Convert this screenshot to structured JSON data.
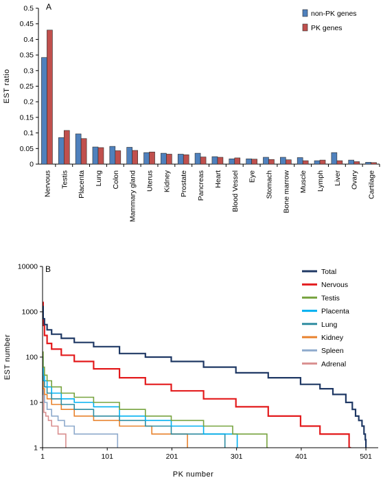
{
  "chart_data": [
    {
      "type": "bar",
      "panel_label": "A",
      "ylabel": "EST ratio",
      "xlabel": "",
      "ylim": [
        0,
        0.5
      ],
      "yticks": [
        0,
        0.05,
        0.1,
        0.15,
        0.2,
        0.25,
        0.3,
        0.35,
        0.4,
        0.45,
        0.5
      ],
      "ytick_labels": [
        "0",
        "0.05",
        "0.1",
        "0.15",
        "0.2",
        "0.25",
        "0.3",
        "0.35",
        "0.4",
        "0.45",
        "0.5"
      ],
      "legend_position": "top-right",
      "categories": [
        "Nervous",
        "Testis",
        "Placenta",
        "Lung",
        "Colon",
        "Mammary gland",
        "Uterus",
        "Kidney",
        "Prostate",
        "Pancreas",
        "Heart",
        "Blood Vessel",
        "Eye",
        "Stomach",
        "Bone marrow",
        "Muscle",
        "Lymph",
        "Liver",
        "Ovary",
        "Cartilage"
      ],
      "series": [
        {
          "name": "non-PK genes",
          "color": "#4f81bd",
          "values": [
            0.342,
            0.085,
            0.097,
            0.055,
            0.057,
            0.054,
            0.037,
            0.035,
            0.032,
            0.035,
            0.024,
            0.017,
            0.017,
            0.022,
            0.022,
            0.021,
            0.011,
            0.037,
            0.013,
            0.006
          ]
        },
        {
          "name": "PK genes",
          "color": "#c0504d",
          "values": [
            0.43,
            0.108,
            0.082,
            0.053,
            0.043,
            0.044,
            0.039,
            0.032,
            0.03,
            0.023,
            0.022,
            0.02,
            0.016,
            0.015,
            0.014,
            0.011,
            0.013,
            0.011,
            0.008,
            0.005
          ]
        }
      ]
    },
    {
      "type": "line",
      "panel_label": "B",
      "ylabel": "EST number",
      "xlabel": "PK number",
      "yscale": "log",
      "ylim": [
        1,
        10000
      ],
      "yticks": [
        1,
        10,
        100,
        1000,
        10000
      ],
      "ytick_labels": [
        "1",
        "10",
        "100",
        "1000",
        "10000"
      ],
      "xlim": [
        1,
        520
      ],
      "xticks": [
        1,
        101,
        201,
        301,
        401,
        501
      ],
      "xtick_labels": [
        "1",
        "101",
        "201",
        "301",
        "401",
        "501"
      ],
      "legend_position": "top-right",
      "series": [
        {
          "name": "Total",
          "color": "#1f3864",
          "width": 2.2,
          "x": [
            1,
            2,
            4,
            8,
            15,
            30,
            50,
            80,
            120,
            160,
            200,
            250,
            300,
            350,
            400,
            430,
            450,
            470,
            480,
            485,
            490,
            495,
            498,
            500,
            501,
            502
          ],
          "y": [
            1300,
            700,
            520,
            400,
            320,
            260,
            210,
            170,
            120,
            100,
            80,
            60,
            45,
            35,
            25,
            20,
            15,
            10,
            7,
            5,
            4,
            3,
            2,
            1.5,
            1,
            1
          ]
        },
        {
          "name": "Nervous",
          "color": "#e31a1c",
          "width": 2.2,
          "x": [
            1,
            2,
            4,
            8,
            15,
            30,
            50,
            80,
            120,
            160,
            200,
            250,
            300,
            350,
            400,
            410,
            430,
            455,
            470,
            475,
            478
          ],
          "y": [
            1600,
            500,
            300,
            200,
            150,
            110,
            80,
            55,
            35,
            25,
            18,
            12,
            8,
            5,
            3,
            3,
            2,
            2,
            2,
            1,
            1
          ]
        },
        {
          "name": "Testis",
          "color": "#77a33f",
          "width": 1.6,
          "x": [
            1,
            2,
            4,
            8,
            15,
            30,
            50,
            80,
            120,
            160,
            200,
            250,
            290,
            295,
            345,
            348,
            350
          ],
          "y": [
            130,
            60,
            40,
            30,
            22,
            16,
            13,
            10,
            7,
            5,
            4,
            3,
            3,
            2,
            2,
            1,
            1
          ]
        },
        {
          "name": "Placenta",
          "color": "#00b0f0",
          "width": 1.6,
          "x": [
            1,
            2,
            4,
            8,
            15,
            30,
            50,
            80,
            120,
            160,
            200,
            250,
            255,
            300,
            302
          ],
          "y": [
            100,
            40,
            30,
            22,
            16,
            12,
            10,
            8,
            5,
            4,
            3,
            2,
            2,
            2,
            1
          ]
        },
        {
          "name": "Lung",
          "color": "#2e8ca0",
          "width": 1.6,
          "x": [
            1,
            2,
            4,
            8,
            15,
            30,
            50,
            80,
            120,
            160,
            200,
            230,
            280,
            283
          ],
          "y": [
            60,
            30,
            22,
            16,
            12,
            9,
            7,
            5,
            4,
            3,
            2,
            2,
            2,
            1
          ]
        },
        {
          "name": "Kidney",
          "color": "#e8822d",
          "width": 1.6,
          "x": [
            1,
            2,
            4,
            8,
            15,
            30,
            50,
            80,
            120,
            150,
            170,
            200,
            222,
            225
          ],
          "y": [
            40,
            20,
            15,
            12,
            9,
            7,
            5,
            4,
            3,
            3,
            2,
            2,
            2,
            1
          ]
        },
        {
          "name": "Spleen",
          "color": "#8eaacc",
          "width": 1.6,
          "x": [
            1,
            2,
            4,
            8,
            15,
            25,
            35,
            50,
            70,
            115,
            117
          ],
          "y": [
            30,
            15,
            10,
            7,
            5,
            4,
            3,
            2,
            2,
            2,
            1
          ]
        },
        {
          "name": "Adrenal",
          "color": "#d98f8f",
          "width": 1.6,
          "x": [
            1,
            3,
            6,
            10,
            15,
            25,
            35,
            37
          ],
          "y": [
            20,
            6,
            5,
            4,
            3,
            2,
            2,
            1
          ]
        }
      ]
    }
  ]
}
